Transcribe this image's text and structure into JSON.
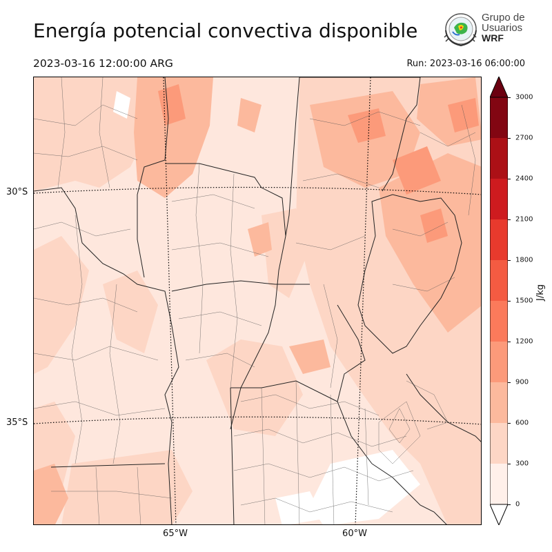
{
  "header": {
    "title": "Energía potencial convectiva disponible",
    "valid_time": "2023-03-16 12:00:00 ARG",
    "run_time": "Run: 2023-03-16 06:00:00"
  },
  "logo": {
    "line1": "Grupo de",
    "line2": "Usuarios",
    "line3": "WRF"
  },
  "map": {
    "lat_labels": [
      "30°S",
      "35°S"
    ],
    "lon_labels": [
      "65°W",
      "60°W"
    ]
  },
  "colorbar": {
    "unit": "J/kg",
    "ticks": [
      "0",
      "300",
      "600",
      "900",
      "1200",
      "1500",
      "1800",
      "2100",
      "2400",
      "2700",
      "3000"
    ],
    "colors": [
      "#fff0ea",
      "#fdd6c5",
      "#fcb99d",
      "#fc9a7a",
      "#fb7a5b",
      "#f45b42",
      "#e83a2d",
      "#ce1b1f",
      "#ac1016",
      "#820612"
    ],
    "over_color": "#6b0010",
    "under_color": "#ffffff"
  },
  "colors": {
    "land_base": "#fee7dd",
    "outline": "#222222"
  }
}
